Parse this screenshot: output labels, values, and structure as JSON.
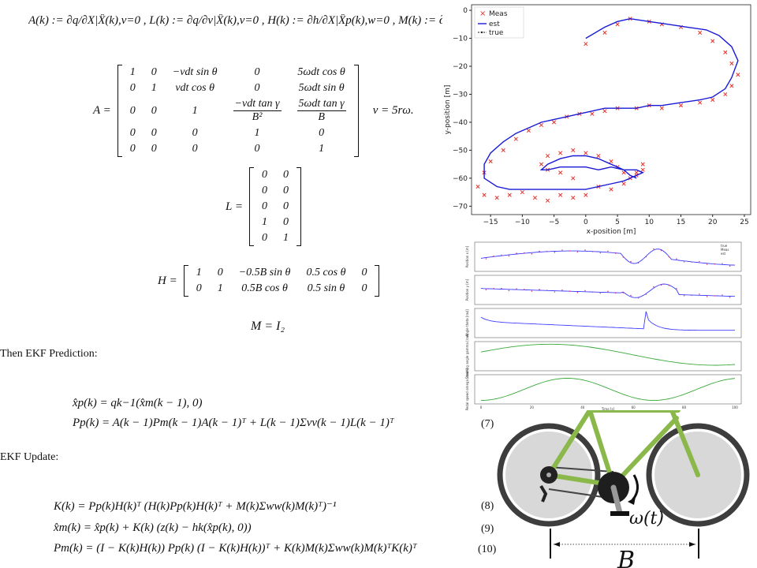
{
  "jacobian_defs": "A(k) := ∂q/∂X|X̂(k),v=0 , L(k) := ∂q/∂v|X̂(k),v=0 , H(k) := ∂h/∂X|X̂p(k),w=0 , M(k) := ∂h/∂w|X̂p(k),",
  "matrix_A_label": "A =",
  "matrix_A_rows": [
    [
      "1",
      "0",
      "−vdt sin θ",
      "0",
      "5ωdt cos θ"
    ],
    [
      "0",
      "1",
      "vdt cos θ",
      "0",
      "5ωdt sin θ"
    ],
    [
      "0",
      "0",
      "1",
      "−vdt tan γ / B²",
      "5ωdt tan γ / B"
    ],
    [
      "0",
      "0",
      "0",
      "1",
      "0"
    ],
    [
      "0",
      "0",
      "0",
      "0",
      "1"
    ]
  ],
  "v_def": "v = 5rω.",
  "matrix_L_label": "L =",
  "matrix_L_rows": [
    [
      "0",
      "0"
    ],
    [
      "0",
      "0"
    ],
    [
      "0",
      "0"
    ],
    [
      "1",
      "0"
    ],
    [
      "0",
      "1"
    ]
  ],
  "matrix_H_label": "H =",
  "matrix_H_rows": [
    [
      "1",
      "0",
      "−0.5B sin θ",
      "0.5 cos θ",
      "0"
    ],
    [
      "0",
      "1",
      "0.5B cos θ",
      "0.5 sin θ",
      "0"
    ]
  ],
  "m_def": "M = I₂",
  "prediction_heading": "Then EKF Prediction:",
  "prediction_eq1": "x̂p(k) = qk−1(x̂m(k − 1), 0)",
  "prediction_eq2": "Pp(k) = A(k − 1)Pm(k − 1)A(k − 1)ᵀ + L(k − 1)Σvv(k − 1)L(k − 1)ᵀ",
  "prediction_num": "(7)",
  "update_heading": "EKF Update:",
  "update_eq1": "K(k) = Pp(k)H(k)ᵀ (H(k)Pp(k)H(k)ᵀ + M(k)Σww(k)M(k)ᵀ)⁻¹",
  "update_num1": "(8)",
  "update_eq2": "x̂m(k) = x̂p(k) + K(k) (z(k) − hk(x̂p(k), 0))",
  "update_num2": "(9)",
  "update_eq3": "Pm(k) = (I − K(k)H(k)) Pp(k) (I − K(k)H(k))ᵀ + K(k)M(k)Σww(k)M(k)ᵀK(k)ᵀ",
  "update_num3": "(10)",
  "chart_data": [
    {
      "type": "scatter",
      "xlabel": "x-position [m]",
      "ylabel": "y-position [m]",
      "xlim": [
        -18,
        26
      ],
      "ylim": [
        -73,
        2
      ],
      "xticks": [
        "−15",
        "−10",
        "−5",
        "0",
        "5",
        "10",
        "15",
        "20",
        "25"
      ],
      "yticks": [
        "0",
        "−10",
        "−20",
        "−30",
        "−40",
        "−50",
        "−60",
        "−70"
      ],
      "legend": [
        "Meas",
        "est",
        "true"
      ],
      "legend_position": "top-left",
      "series": [
        {
          "name": "Meas",
          "marker": "x",
          "color": "#e8302a",
          "x": [
            0,
            3,
            5,
            7,
            10,
            12,
            15,
            18,
            20,
            22,
            23,
            24,
            23,
            22,
            20,
            18,
            15,
            12,
            10,
            8,
            5,
            3,
            1,
            -1,
            -3,
            -5,
            -7,
            -9,
            -11,
            -13,
            -15,
            -16,
            -17,
            -16,
            -14,
            -12,
            -10,
            -8,
            -6,
            -4,
            -2,
            0,
            2,
            4,
            6,
            7,
            8,
            9,
            -2,
            -4,
            -6,
            -7,
            -6,
            -4,
            -2,
            0,
            2,
            4,
            5,
            6,
            8,
            9
          ],
          "y": [
            -12,
            -8,
            -5,
            -3,
            -4,
            -5,
            -6,
            -8,
            -11,
            -15,
            -19,
            -23,
            -27,
            -30,
            -32,
            -33,
            -34,
            -35,
            -34,
            -35,
            -35,
            -36,
            -37,
            -37,
            -38,
            -40,
            -41,
            -43,
            -46,
            -50,
            -54,
            -58,
            -63,
            -66,
            -67,
            -66,
            -65,
            -67,
            -68,
            -66,
            -67,
            -66,
            -63,
            -64,
            -62,
            -60,
            -58,
            -55,
            -60,
            -58,
            -57,
            -55,
            -52,
            -51,
            -50,
            -51,
            -52,
            -54,
            -56,
            -58,
            -59,
            -57
          ]
        },
        {
          "name": "est",
          "marker": "line",
          "color": "#1a1ad6",
          "x": [
            0,
            3,
            5,
            7,
            10,
            13,
            16,
            19,
            21,
            23,
            24,
            23,
            22,
            20,
            18,
            15,
            12,
            10,
            8,
            5,
            3,
            1,
            -1,
            -3,
            -5,
            -7,
            -9,
            -11,
            -13,
            -15,
            -16,
            -16,
            -14,
            -12,
            -10,
            -8,
            -6,
            -4,
            -2,
            0,
            2,
            4,
            6,
            7,
            8,
            9,
            8,
            6,
            4,
            2,
            0,
            -2,
            -4,
            -6,
            -7,
            -6,
            -4,
            -2,
            0,
            2,
            4,
            6,
            7,
            8
          ],
          "y": [
            -10,
            -6,
            -4,
            -3,
            -4,
            -5,
            -6,
            -7,
            -9,
            -13,
            -18,
            -24,
            -28,
            -31,
            -32,
            -33,
            -34,
            -34,
            -35,
            -35,
            -35,
            -36,
            -37,
            -38,
            -39,
            -40,
            -42,
            -44,
            -47,
            -51,
            -55,
            -60,
            -63,
            -64,
            -64,
            -64,
            -64,
            -64,
            -64,
            -64,
            -63,
            -62,
            -61,
            -60,
            -59,
            -58,
            -57,
            -57,
            -56,
            -57,
            -56,
            -56,
            -56,
            -57,
            -57,
            -55,
            -53,
            -52,
            -52,
            -53,
            -55,
            -57,
            -59,
            -60
          ]
        }
      ]
    },
    {
      "type": "line",
      "panels": [
        {
          "ylabel": "Position x [m]",
          "legend": [
            "true",
            "Meas",
            "est"
          ],
          "color": "#3a3aff"
        },
        {
          "ylabel": "Position y [m]",
          "color": "#3a3aff"
        },
        {
          "ylabel": "Angle theta [rad]",
          "color": "#3a3aff"
        },
        {
          "ylabel": "Steering angle gamma [rad]",
          "color": "#3aa83a"
        },
        {
          "ylabel": "Pedal speed omega [rad/s]",
          "color": "#3aa83a"
        }
      ],
      "xlabel": "Time [s]",
      "xticks": [
        "0",
        "20",
        "40",
        "60",
        "80",
        "100"
      ]
    }
  ],
  "bike_omega_label": "ω(t)",
  "bike_B_label": "B"
}
